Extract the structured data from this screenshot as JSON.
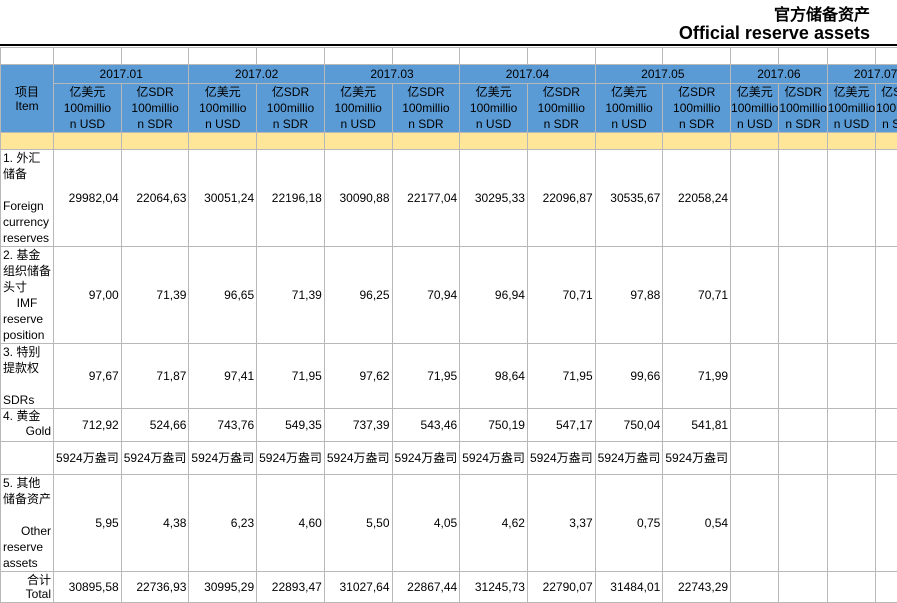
{
  "title_cn": "官方储备资产",
  "title_en": "Official reserve assets",
  "item_header": {
    "cn": "项目",
    "en": "Item"
  },
  "months": [
    "2017.01",
    "2017.02",
    "2017.03",
    "2017.04",
    "2017.05",
    "2017.06",
    "2017.07"
  ],
  "unit_usd": [
    "亿美元",
    "100millio",
    "n USD"
  ],
  "unit_sdr": [
    "亿SDR",
    "100millio",
    "n SDR"
  ],
  "rows": {
    "fx": {
      "label": [
        "1. 外汇",
        "储备",
        "",
        "Foreign",
        "currency",
        "reserves"
      ],
      "values": [
        "29982,04",
        "22064,63",
        "30051,24",
        "22196,18",
        "30090,88",
        "22177,04",
        "30295,33",
        "22096,87",
        "30535,67",
        "22058,24"
      ]
    },
    "imf": {
      "label": [
        "2. 基金",
        "组织储备",
        "头寸",
        "IMF",
        "reserve",
        "position"
      ],
      "values": [
        "97,00",
        "71,39",
        "96,65",
        "71,39",
        "96,25",
        "70,94",
        "96,94",
        "70,71",
        "97,88",
        "70,71"
      ]
    },
    "sdr": {
      "label": [
        "3. 特别",
        "提款权",
        "",
        "SDRs"
      ],
      "values": [
        "97,67",
        "71,87",
        "97,41",
        "71,95",
        "97,62",
        "71,95",
        "98,64",
        "71,95",
        "99,66",
        "71,99"
      ]
    },
    "gold": {
      "label": [
        "4. 黄金",
        "Gold"
      ],
      "values": [
        "712,92",
        "524,66",
        "743,76",
        "549,35",
        "737,39",
        "543,46",
        "750,19",
        "547,17",
        "750,04",
        "541,81"
      ]
    },
    "gold_qty": {
      "values": [
        "5924万盎司",
        "5924万盎司",
        "5924万盎司",
        "5924万盎司",
        "5924万盎司",
        "5924万盎司",
        "5924万盎司",
        "5924万盎司",
        "5924万盎司",
        "5924万盎司"
      ]
    },
    "other": {
      "label": [
        "5. 其他",
        "储备资产",
        "",
        "Other",
        "reserve",
        "assets"
      ],
      "values": [
        "5,95",
        "4,38",
        "6,23",
        "4,60",
        "5,50",
        "4,05",
        "4,62",
        "3,37",
        "0,75",
        "0,54"
      ]
    },
    "total": {
      "label": [
        "合计",
        "Total"
      ],
      "values": [
        "30895,58",
        "22736,93",
        "30995,29",
        "22893,47",
        "31027,64",
        "22867,44",
        "31245,73",
        "22790,07",
        "31484,01",
        "22743,29"
      ]
    }
  }
}
